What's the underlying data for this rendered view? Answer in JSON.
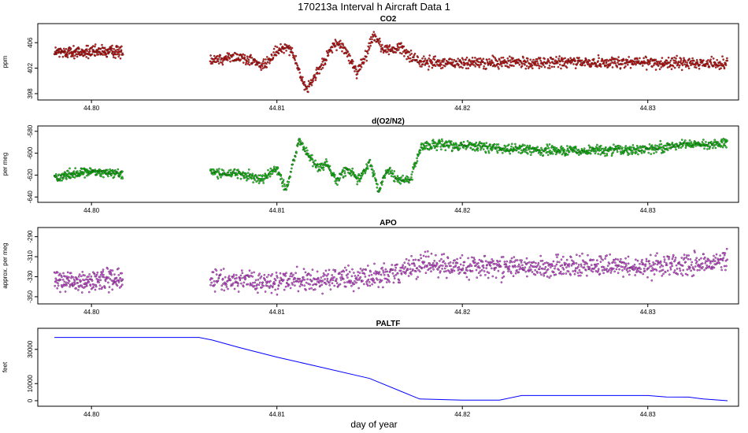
{
  "figure": {
    "title": "170213a   Interval h Aircraft Data 1",
    "xlabel": "day of year"
  },
  "chart_data": [
    {
      "type": "scatter",
      "title": "CO2",
      "ylabel": "ppm",
      "color": "#e00000",
      "xlim": [
        44.7977,
        44.8343
      ],
      "ylim": [
        397.5,
        408.5
      ],
      "xticks": [
        44.8,
        44.81,
        44.82,
        44.83
      ],
      "xtick_labels": [
        "44.80",
        "44.81",
        "44.82",
        "44.83"
      ],
      "yticks": [
        398,
        402,
        406
      ],
      "ytick_labels": [
        "398",
        "402",
        "406"
      ],
      "noise": 0.45,
      "segments": [
        {
          "x0": 44.798,
          "x1": 44.8017,
          "n": 240
        },
        {
          "x0": 44.8064,
          "x1": 44.8343,
          "n": 1300
        }
      ],
      "series": [
        {
          "name": "CO2",
          "x": [
            44.798,
            44.8017,
            44.8064,
            44.808,
            44.8088,
            44.8092,
            44.81,
            44.8106,
            44.811,
            44.8115,
            44.812,
            44.8126,
            44.8132,
            44.8137,
            44.8143,
            44.8148,
            44.8152,
            44.8158,
            44.8162,
            44.8167,
            44.8171,
            44.8178,
            44.82,
            44.825,
            44.83,
            44.8343
          ],
          "values": [
            404.5,
            404.6,
            403.4,
            403.8,
            403.0,
            402.2,
            404.5,
            405.7,
            403.5,
            398.6,
            400.3,
            403.5,
            406.0,
            404.8,
            401.2,
            404.0,
            407.2,
            405.0,
            404.8,
            405.4,
            404.0,
            403.0,
            402.8,
            402.9,
            402.9,
            402.7
          ]
        }
      ]
    },
    {
      "type": "scatter",
      "title": "d(O2/N2)",
      "ylabel": "per meg",
      "color": "#00d800",
      "xlim": [
        44.7977,
        44.8343
      ],
      "ylim": [
        -642,
        -578
      ],
      "xticks": [
        44.8,
        44.81,
        44.82,
        44.83
      ],
      "xtick_labels": [
        "44.80",
        "44.81",
        "44.82",
        "44.83"
      ],
      "yticks": [
        -640,
        -620,
        -600,
        -580
      ],
      "ytick_labels": [
        "-640",
        "-620",
        "-600",
        "-580"
      ],
      "noise": 2.2,
      "segments": [
        {
          "x0": 44.798,
          "x1": 44.8017,
          "n": 220
        },
        {
          "x0": 44.8064,
          "x1": 44.8343,
          "n": 1300
        }
      ],
      "series": [
        {
          "name": "d(O2/N2)",
          "x": [
            44.798,
            44.799,
            44.8,
            44.8017,
            44.8064,
            44.808,
            44.8092,
            44.81,
            44.8105,
            44.8112,
            44.8117,
            44.8122,
            44.8127,
            44.8132,
            44.8138,
            44.8144,
            44.815,
            44.8155,
            44.816,
            44.8166,
            44.8172,
            44.8178,
            44.82,
            44.825,
            44.83,
            44.832,
            44.8343
          ],
          "values": [
            -622,
            -619,
            -617,
            -619,
            -617,
            -619,
            -624,
            -614,
            -634,
            -587,
            -602,
            -612,
            -610,
            -625,
            -614,
            -625,
            -608,
            -634,
            -615,
            -626,
            -624,
            -593,
            -593,
            -598,
            -597,
            -592,
            -591
          ]
        }
      ]
    },
    {
      "type": "scatter",
      "title": "APO",
      "ylabel": "approx. per meg",
      "color": "#e040f0",
      "xlim": [
        44.7977,
        44.8343
      ],
      "ylim": [
        -354,
        -284
      ],
      "xticks": [
        44.8,
        44.81,
        44.82,
        44.83
      ],
      "xtick_labels": [
        "44.80",
        "44.81",
        "44.82",
        "44.83"
      ],
      "yticks": [
        -350,
        -330,
        -310,
        -290
      ],
      "ytick_labels": [
        "-350",
        "-330",
        "-310",
        "-290"
      ],
      "noise": 5.5,
      "segments": [
        {
          "x0": 44.798,
          "x1": 44.8017,
          "n": 200
        },
        {
          "x0": 44.8064,
          "x1": 44.8343,
          "n": 1200
        }
      ],
      "series": [
        {
          "name": "APO",
          "x": [
            44.798,
            44.8017,
            44.8064,
            44.81,
            44.815,
            44.817,
            44.818,
            44.82,
            44.825,
            44.83,
            44.8343
          ],
          "values": [
            -336,
            -332,
            -334,
            -335,
            -331,
            -324,
            -317,
            -320,
            -320,
            -320,
            -315
          ]
        }
      ]
    },
    {
      "type": "line",
      "title": "PALTF",
      "ylabel": "feet",
      "color": "#0000ff",
      "xlim": [
        44.7977,
        44.8343
      ],
      "ylim": [
        -1400,
        40500
      ],
      "xticks": [
        44.8,
        44.81,
        44.82,
        44.83
      ],
      "xtick_labels": [
        "44.80",
        "44.81",
        "44.82",
        "44.83"
      ],
      "yticks": [
        0,
        10000,
        30000
      ],
      "ytick_labels": [
        "0",
        "10000",
        "30000"
      ],
      "series": [
        {
          "name": "PALTF",
          "x": [
            44.798,
            44.8058,
            44.8065,
            44.808,
            44.81,
            44.812,
            44.815,
            44.8177,
            44.82,
            44.822,
            44.8232,
            44.83,
            44.831,
            44.8322,
            44.833,
            44.8343
          ],
          "values": [
            37000,
            37000,
            35500,
            31000,
            25500,
            20500,
            13000,
            1000,
            300,
            300,
            3000,
            3000,
            2200,
            2100,
            1000,
            0
          ]
        }
      ]
    }
  ]
}
